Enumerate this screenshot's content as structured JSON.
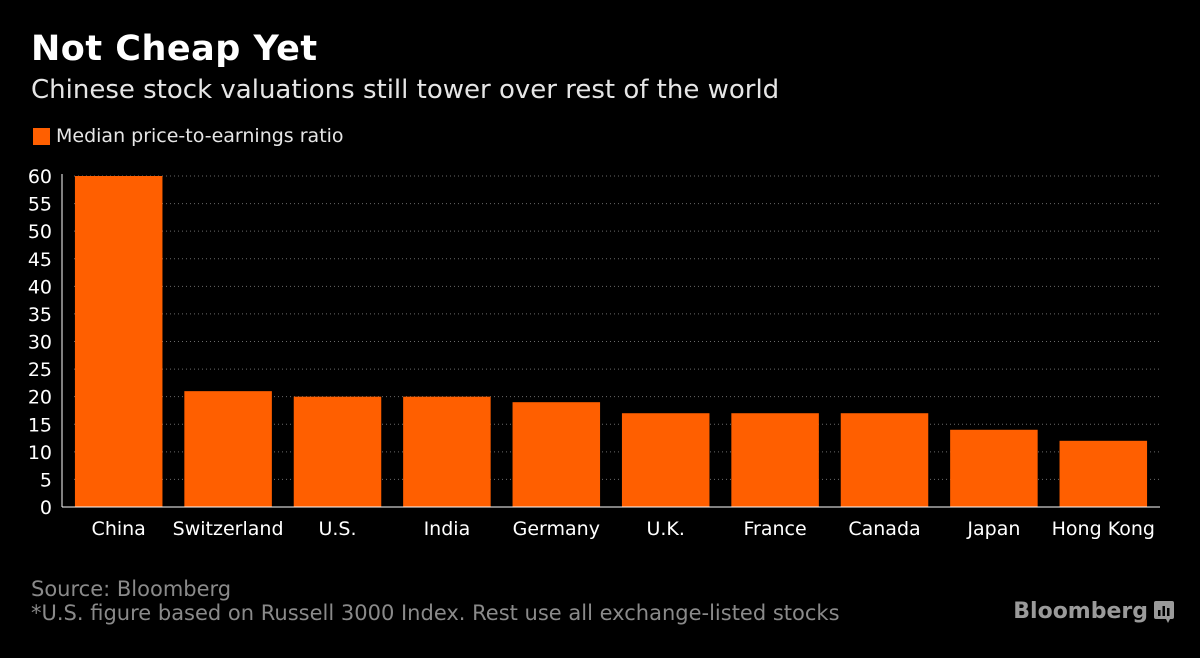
{
  "header": {
    "title": "Not Cheap Yet",
    "subtitle": "Chinese stock valuations still tower over rest of the world"
  },
  "legend": {
    "label": "Median price-to-earnings ratio",
    "color": "#ff5f00"
  },
  "footer": {
    "source": "Source: Bloomberg",
    "note": "*U.S. figure based on Russell 3000 Index. Rest use all exchange-listed stocks",
    "brand": "Bloomberg",
    "brand_icon": "bloomberg-logo-icon"
  },
  "chart_data": {
    "type": "bar",
    "title": "Not Cheap Yet",
    "subtitle": "Chinese stock valuations still tower over rest of the world",
    "xlabel": "",
    "ylabel": "",
    "ylim": [
      0,
      60
    ],
    "yticks": [
      0,
      5,
      10,
      15,
      20,
      25,
      30,
      35,
      40,
      45,
      50,
      55,
      60
    ],
    "grid": true,
    "legend_position": "top-left",
    "categories": [
      "China",
      "Switzerland",
      "U.S.",
      "India",
      "Germany",
      "U.K.",
      "France",
      "Canada",
      "Japan",
      "Hong Kong"
    ],
    "series": [
      {
        "name": "Median price-to-earnings ratio",
        "color": "#ff5f00",
        "values": [
          60,
          21,
          20,
          20,
          19,
          17,
          17,
          17,
          14,
          12
        ]
      }
    ]
  }
}
